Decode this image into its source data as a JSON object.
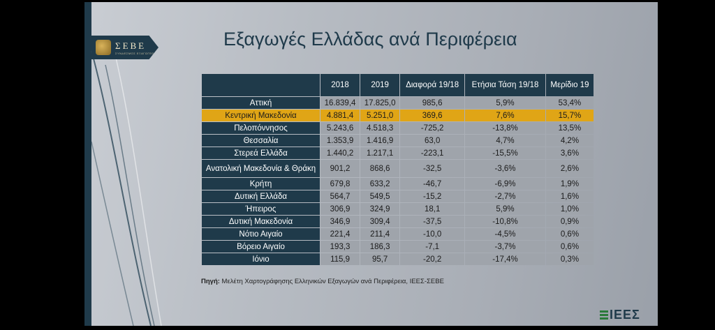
{
  "logo": {
    "name": "ΣΕΒΕ",
    "subtitle": "ΣΥΝΔΕΣΜΟΣ ΕΞΑΓΩΓΕΩΝ"
  },
  "title": "Εξαγωγές Ελλάδας ανά Περιφέρεια",
  "table": {
    "headers": [
      "",
      "2018",
      "2019",
      "Διαφορά 19/18",
      "Ετήσια Τάση 19/18",
      "Μερίδιο 19"
    ],
    "rows": [
      [
        "Αττική",
        "16.839,4",
        "17.825,0",
        "985,6",
        "5,9%",
        "53,4%"
      ],
      [
        "Κεντρική Μακεδονία",
        "4.881,4",
        "5.251,0",
        "369,6",
        "7,6%",
        "15,7%"
      ],
      [
        "Πελοπόννησος",
        "5.243,6",
        "4.518,3",
        "-725,2",
        "-13,8%",
        "13,5%"
      ],
      [
        "Θεσσαλία",
        "1.353,9",
        "1.416,9",
        "63,0",
        "4,7%",
        "4,2%"
      ],
      [
        "Στερεά Ελλάδα",
        "1.440,2",
        "1.217,1",
        "-223,1",
        "-15,5%",
        "3,6%"
      ],
      [
        "Ανατολική Μακεδονία & Θράκη",
        "901,2",
        "868,6",
        "-32,5",
        "-3,6%",
        "2,6%"
      ],
      [
        "Κρήτη",
        "679,8",
        "633,2",
        "-46,7",
        "-6,9%",
        "1,9%"
      ],
      [
        "Δυτική Ελλάδα",
        "564,7",
        "549,5",
        "-15,2",
        "-2,7%",
        "1,6%"
      ],
      [
        "Ήπειρος",
        "306,9",
        "324,9",
        "18,1",
        "5,9%",
        "1,0%"
      ],
      [
        "Δυτική Μακεδονία",
        "346,9",
        "309,4",
        "-37,5",
        "-10,8%",
        "0,9%"
      ],
      [
        "Νότιο Αιγαίο",
        "221,4",
        "211,4",
        "-10,0",
        "-4,5%",
        "0,6%"
      ],
      [
        "Βόρειο Αιγαίο",
        "193,3",
        "186,3",
        "-7,1",
        "-3,7%",
        "0,6%"
      ],
      [
        "Ιόνιο",
        "115,9",
        "95,7",
        "-20,2",
        "-17,4%",
        "0,3%"
      ]
    ]
  },
  "source": {
    "label": "Πηγή:",
    "text": " Μελέτη Χαρτογράφησης Ελληνικών Εξαγωγών ανά Περιφέρεια, ΙΕΕΣ-ΣΕΒΕ"
  },
  "footer_logo": "ΙΕΕΣ",
  "colors": {
    "navy": "#1f3a4a",
    "highlight": "#e0a516",
    "cell": "#9fa4ab"
  }
}
